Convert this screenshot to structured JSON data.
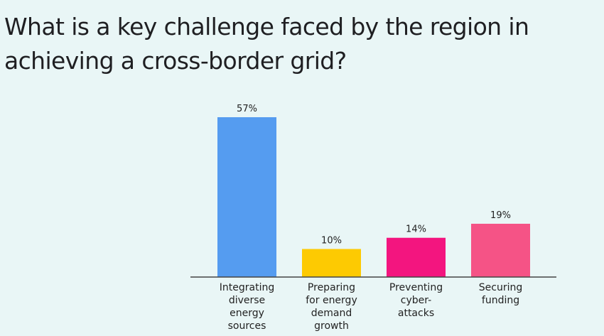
{
  "question": {
    "title": "What is a key challenge faced by the region in achieving a cross-border grid?"
  },
  "chart_data": {
    "type": "bar",
    "title": "What is a key challenge faced by the region in achieving a cross-border grid?",
    "categories": [
      "Integrating diverse energy sources",
      "Preparing for energy demand growth",
      "Preventing cyber-attacks",
      "Securing funding"
    ],
    "category_lines": [
      [
        "Integrating",
        "diverse",
        "energy",
        "sources"
      ],
      [
        "Preparing",
        "for energy",
        "demand",
        "growth"
      ],
      [
        "Preventing",
        "cyber-",
        "attacks"
      ],
      [
        "Securing",
        "funding"
      ]
    ],
    "values": [
      57,
      10,
      14,
      19
    ],
    "value_labels": [
      "57%",
      "10%",
      "14%",
      "19%"
    ],
    "unit": "%",
    "colors": [
      "#559cf0",
      "#fdca02",
      "#f3157f",
      "#f55386"
    ],
    "xlabel": "",
    "ylabel": "",
    "ylim": [
      0,
      57
    ],
    "grid": false,
    "legend": "none"
  }
}
